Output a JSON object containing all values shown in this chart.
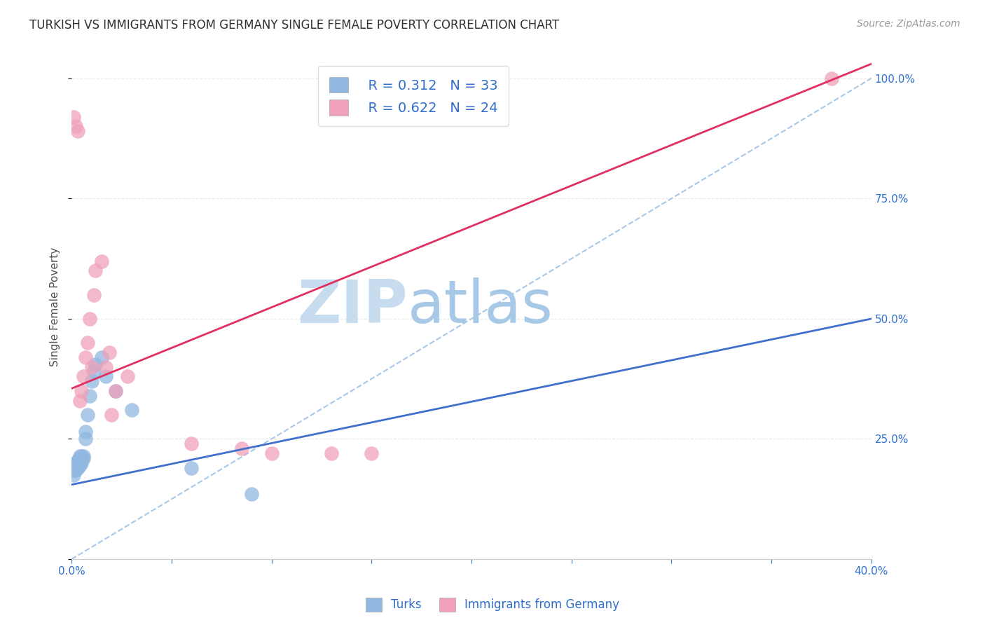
{
  "title": "TURKISH VS IMMIGRANTS FROM GERMANY SINGLE FEMALE POVERTY CORRELATION CHART",
  "source": "Source: ZipAtlas.com",
  "ylabel": "Single Female Poverty",
  "xmin": 0.0,
  "xmax": 0.4,
  "ymin": 0.0,
  "ymax": 1.05,
  "y_ticks": [
    0.0,
    0.25,
    0.5,
    0.75,
    1.0
  ],
  "legend_R_blue": "R = 0.312",
  "legend_N_blue": "N = 33",
  "legend_R_pink": "R = 0.622",
  "legend_N_pink": "N = 24",
  "legend_label_blue": "Turks",
  "legend_label_pink": "Immigrants from Germany",
  "blue_scatter_color": "#90B8E0",
  "pink_scatter_color": "#F0A0B8",
  "blue_line_color": "#4070CC",
  "pink_line_color": "#E03060",
  "dashed_line_color": "#A8C8E8",
  "title_color": "#303030",
  "axis_label_color": "#505050",
  "tick_label_color": "#3070CC",
  "grid_color": "#E8E8E8",
  "background_color": "#FFFFFF",
  "watermark_zip_color": "#C8DCF0",
  "watermark_atlas_color": "#A8C8E8",
  "turks_x": [
    0.001,
    0.001,
    0.001,
    0.002,
    0.002,
    0.002,
    0.002,
    0.003,
    0.003,
    0.003,
    0.003,
    0.004,
    0.004,
    0.004,
    0.005,
    0.005,
    0.005,
    0.005,
    0.006,
    0.006,
    0.007,
    0.007,
    0.008,
    0.009,
    0.01,
    0.011,
    0.012,
    0.015,
    0.017,
    0.022,
    0.03,
    0.06,
    0.09
  ],
  "turks_y": [
    0.175,
    0.185,
    0.19,
    0.185,
    0.19,
    0.195,
    0.2,
    0.19,
    0.195,
    0.2,
    0.205,
    0.195,
    0.21,
    0.215,
    0.2,
    0.205,
    0.21,
    0.215,
    0.21,
    0.215,
    0.25,
    0.265,
    0.3,
    0.34,
    0.37,
    0.39,
    0.405,
    0.42,
    0.38,
    0.35,
    0.31,
    0.19,
    0.135
  ],
  "germany_x": [
    0.001,
    0.002,
    0.003,
    0.004,
    0.005,
    0.006,
    0.007,
    0.008,
    0.009,
    0.01,
    0.011,
    0.012,
    0.015,
    0.017,
    0.019,
    0.022,
    0.028,
    0.06,
    0.085,
    0.1,
    0.13,
    0.15,
    0.02,
    0.38
  ],
  "germany_y": [
    0.92,
    0.9,
    0.89,
    0.33,
    0.35,
    0.38,
    0.42,
    0.45,
    0.5,
    0.4,
    0.55,
    0.6,
    0.62,
    0.4,
    0.43,
    0.35,
    0.38,
    0.24,
    0.23,
    0.22,
    0.22,
    0.22,
    0.3,
    1.0
  ],
  "blue_line_x0": 0.0,
  "blue_line_y0": 0.155,
  "blue_line_x1": 0.4,
  "blue_line_y1": 0.5,
  "pink_line_x0": 0.0,
  "pink_line_y0": 0.355,
  "pink_line_x1": 0.4,
  "pink_line_y1": 1.03
}
